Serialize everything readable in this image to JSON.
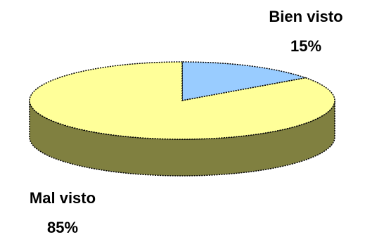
{
  "chart_data": {
    "type": "pie",
    "title": "",
    "slices": [
      {
        "label": "Bien visto",
        "value": 15,
        "value_label": "15%",
        "color": "#99ccff"
      },
      {
        "label": "Mal visto",
        "value": 85,
        "value_label": "85%",
        "color": "#ffff99",
        "side_color": "#808040"
      }
    ],
    "style": "3d-exploded-none",
    "legend": "none"
  }
}
